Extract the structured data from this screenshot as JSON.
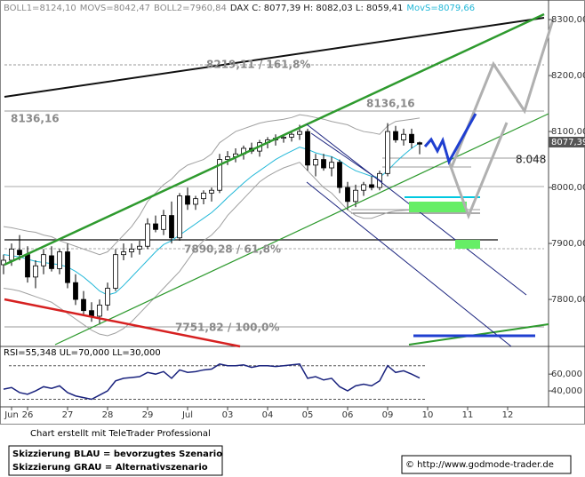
{
  "chart_data": {
    "type": "candlestick",
    "header": [
      {
        "text": "BOLL1=8124,10",
        "color": "#8a8a8a"
      },
      {
        "text": "MOVS=8042,47",
        "color": "#8a8a8a"
      },
      {
        "text": "BOLL2=7960,84",
        "color": "#8a8a8a"
      },
      {
        "text": "DAX C: 8077,39 H: 8082,03 L: 8059,41",
        "color": "#222222"
      },
      {
        "text": "MovS=8079,66",
        "color": "#22b8d8"
      }
    ],
    "annotations": [
      "8219,11 / 161,8%",
      "8136,16",
      "8136,16",
      "8.048",
      "7890,28 / 61,8%",
      "7751,82 / 100,0%"
    ],
    "last_price_label": "8077,39",
    "rsi_label": "RSI=55,348 UL=70,000 LL=30,000",
    "footer": "Chart erstellt mit TeleTrader Professional",
    "legend_lines": [
      "Skizzierung BLAU = bevorzugtes Szenario",
      "Skizzierung GRAU = Alternativszenario"
    ],
    "source": "© http://www.godmode-trader.de",
    "categories": [
      null,
      "Jun",
      null,
      "26",
      null,
      null,
      null,
      null,
      "27",
      null,
      null,
      null,
      null,
      "28",
      null,
      null,
      null,
      null,
      "29",
      null,
      null,
      null,
      null,
      "Jul",
      null,
      null,
      null,
      null,
      "03",
      null,
      null,
      null,
      null,
      "04",
      null,
      null,
      null,
      null,
      "05",
      null,
      null,
      null,
      null,
      "06",
      null,
      null,
      null,
      null,
      "09",
      null,
      null,
      null,
      null,
      "10",
      null,
      null,
      null,
      null,
      "11",
      null,
      null,
      null,
      null,
      "12",
      null,
      null,
      null,
      null
    ],
    "ohlc": [
      [
        7862,
        7880,
        7845,
        7870
      ],
      [
        7870,
        7900,
        7860,
        7890
      ],
      [
        7888,
        7915,
        7870,
        7880
      ],
      [
        7880,
        7895,
        7830,
        7840
      ],
      [
        7840,
        7870,
        7820,
        7860
      ],
      [
        7860,
        7890,
        7845,
        7880
      ],
      [
        7878,
        7895,
        7850,
        7855
      ],
      [
        7855,
        7890,
        7845,
        7885
      ],
      [
        7885,
        7900,
        7820,
        7830
      ],
      [
        7830,
        7845,
        7790,
        7800
      ],
      [
        7800,
        7815,
        7770,
        7780
      ],
      [
        7780,
        7795,
        7760,
        7770
      ],
      [
        7770,
        7800,
        7755,
        7790
      ],
      [
        7790,
        7830,
        7780,
        7820
      ],
      [
        7820,
        7890,
        7815,
        7880
      ],
      [
        7880,
        7900,
        7870,
        7885
      ],
      [
        7885,
        7900,
        7875,
        7890
      ],
      [
        7890,
        7905,
        7880,
        7895
      ],
      [
        7895,
        7945,
        7890,
        7935
      ],
      [
        7935,
        7950,
        7920,
        7925
      ],
      [
        7925,
        7960,
        7915,
        7950
      ],
      [
        7950,
        7975,
        7900,
        7910
      ],
      [
        7910,
        7990,
        7905,
        7985
      ],
      [
        7985,
        8000,
        7960,
        7970
      ],
      [
        7970,
        7985,
        7960,
        7980
      ],
      [
        7980,
        7995,
        7970,
        7990
      ],
      [
        7990,
        8000,
        7975,
        7995
      ],
      [
        7995,
        8060,
        7990,
        8050
      ],
      [
        8050,
        8065,
        8040,
        8055
      ],
      [
        8055,
        8070,
        8045,
        8060
      ],
      [
        8060,
        8075,
        8050,
        8070
      ],
      [
        8070,
        8080,
        8060,
        8065
      ],
      [
        8065,
        8085,
        8055,
        8080
      ],
      [
        8080,
        8090,
        8070,
        8085
      ],
      [
        8085,
        8095,
        8075,
        8088
      ],
      [
        8088,
        8095,
        8080,
        8090
      ],
      [
        8090,
        8100,
        8082,
        8095
      ],
      [
        8095,
        8112,
        8085,
        8100
      ],
      [
        8100,
        8105,
        8030,
        8040
      ],
      [
        8040,
        8060,
        8020,
        8050
      ],
      [
        8050,
        8060,
        8030,
        8035
      ],
      [
        8035,
        8055,
        8020,
        8045
      ],
      [
        8045,
        8050,
        7990,
        8000
      ],
      [
        8000,
        8010,
        7960,
        7975
      ],
      [
        7975,
        8005,
        7965,
        7995
      ],
      [
        7995,
        8010,
        7985,
        8005
      ],
      [
        8005,
        8020,
        7995,
        8000
      ],
      [
        8000,
        8030,
        7995,
        8025
      ],
      [
        8025,
        8115,
        8020,
        8100
      ],
      [
        8100,
        8110,
        8080,
        8085
      ],
      [
        8085,
        8105,
        8075,
        8095
      ],
      [
        8095,
        8105,
        8070,
        8080
      ],
      [
        8080,
        8082.03,
        8059.41,
        8077.39
      ],
      null,
      null,
      null,
      null,
      null,
      null,
      null,
      null,
      null,
      null,
      null,
      null,
      null,
      null,
      null
    ],
    "series": [
      {
        "name": "BOLL1",
        "color": "#a0a0a0",
        "values": [
          7930,
          7928,
          7925,
          7922,
          7920,
          7915,
          7912,
          7905,
          7900,
          7895,
          7890,
          7885,
          7880,
          7885,
          7900,
          7915,
          7930,
          7950,
          7975,
          7990,
          8005,
          8015,
          8030,
          8040,
          8045,
          8050,
          8060,
          8080,
          8090,
          8100,
          8105,
          8110,
          8115,
          8118,
          8120,
          8122,
          8125,
          8130,
          8128,
          8125,
          8122,
          8118,
          8115,
          8112,
          8105,
          8100,
          8098,
          8095,
          8110,
          8118,
          8120,
          8122,
          8124.1,
          null,
          null,
          null,
          null,
          null,
          null,
          null,
          null,
          null,
          null,
          null,
          null,
          null,
          null,
          null
        ]
      },
      {
        "name": "BOLL2",
        "color": "#a0a0a0",
        "values": [
          7820,
          7818,
          7815,
          7810,
          7805,
          7800,
          7795,
          7785,
          7775,
          7765,
          7755,
          7745,
          7738,
          7735,
          7740,
          7748,
          7760,
          7775,
          7790,
          7805,
          7820,
          7835,
          7850,
          7870,
          7890,
          7905,
          7915,
          7930,
          7950,
          7965,
          7980,
          7995,
          8010,
          8020,
          8028,
          8035,
          8040,
          8045,
          8030,
          8015,
          8000,
          7990,
          7975,
          7960,
          7950,
          7945,
          7945,
          7950,
          7955,
          7958,
          7959,
          7960,
          7960.84,
          null,
          null,
          null,
          null,
          null,
          null,
          null,
          null,
          null,
          null,
          null,
          null,
          null,
          null,
          null
        ]
      },
      {
        "name": "MovS",
        "color": "#22b8d8",
        "values": [
          7880,
          7878,
          7876,
          7872,
          7868,
          7866,
          7864,
          7862,
          7858,
          7850,
          7840,
          7828,
          7815,
          7808,
          7812,
          7825,
          7840,
          7855,
          7870,
          7885,
          7898,
          7905,
          7915,
          7925,
          7935,
          7945,
          7955,
          7968,
          7982,
          7995,
          8008,
          8020,
          8030,
          8040,
          8050,
          8058,
          8065,
          8072,
          8068,
          8062,
          8058,
          8055,
          8048,
          8038,
          8030,
          8025,
          8020,
          8018,
          8030,
          8045,
          8058,
          8070,
          8079.66,
          null,
          null,
          null,
          null,
          null,
          null,
          null,
          null,
          null,
          null,
          null,
          null,
          null,
          null,
          null
        ]
      }
    ],
    "rsi": {
      "color": "#1a237e",
      "ul": 70,
      "ll": 30,
      "values": [
        42,
        44,
        38,
        36,
        40,
        45,
        43,
        46,
        38,
        34,
        32,
        30,
        35,
        40,
        52,
        55,
        56,
        57,
        62,
        60,
        63,
        55,
        65,
        62,
        63,
        65,
        66,
        72,
        70,
        70,
        71,
        68,
        70,
        70,
        69,
        70,
        71,
        72,
        55,
        57,
        53,
        55,
        45,
        40,
        46,
        48,
        46,
        52,
        70,
        62,
        64,
        60,
        55.348,
        null,
        null,
        null,
        null,
        null,
        null,
        null,
        null,
        null,
        null,
        null,
        null,
        null,
        null,
        null
      ]
    },
    "ylim": [
      7716,
      8335
    ],
    "yticks": [
      {
        "value": 8300,
        "label": "8300,00"
      },
      {
        "value": 8200,
        "label": "8200,00"
      },
      {
        "value": 8100,
        "label": "8100,00"
      },
      {
        "value": 8000,
        "label": "8000,00"
      },
      {
        "value": 7900,
        "label": "7900,00"
      },
      {
        "value": 7800,
        "label": "7800,00"
      }
    ],
    "y2lim": [
      21,
      93
    ],
    "y2ticks": [
      {
        "value": 60,
        "label": "60,000"
      },
      {
        "value": 40,
        "label": "40,000"
      }
    ]
  }
}
